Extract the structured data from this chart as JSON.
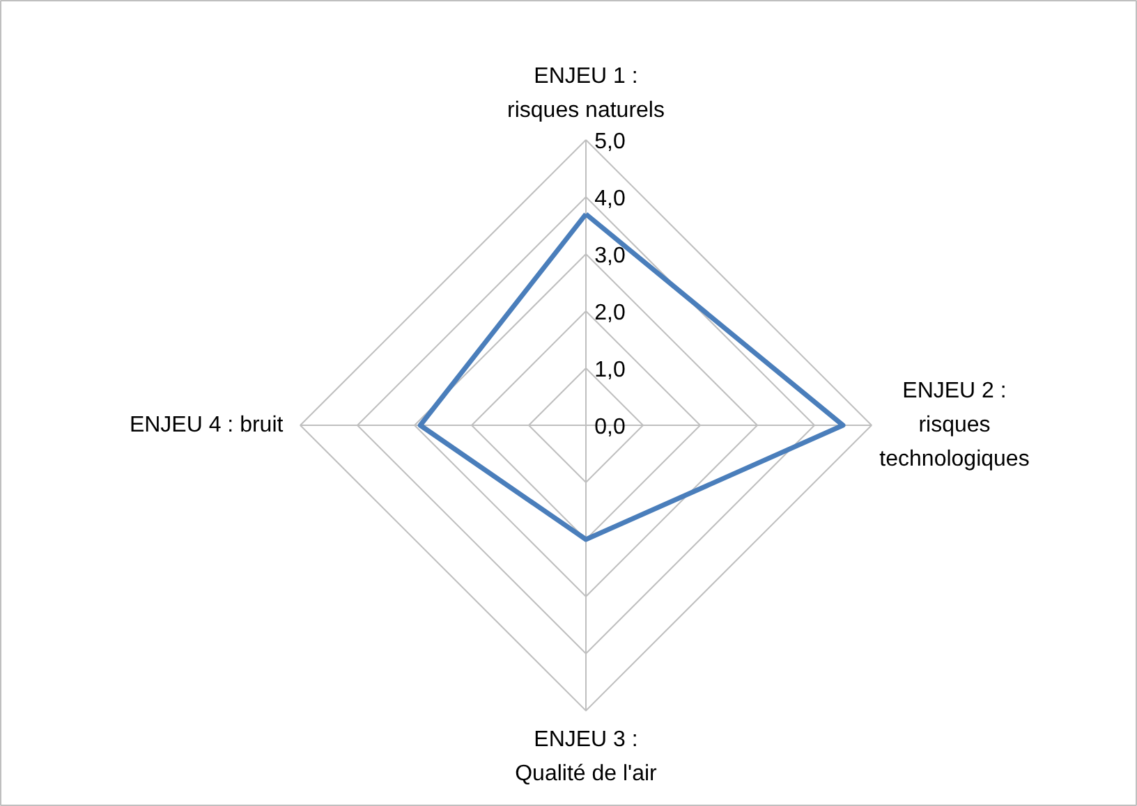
{
  "chart_data": {
    "type": "radar",
    "categories": [
      "ENJEU 1 :\nrisques naturels",
      "ENJEU 2 :\nrisques\ntechnologiques",
      "ENJEU 3 :\nQualité de l'air",
      "ENJEU 4 : bruit"
    ],
    "series": [
      {
        "color": "#4a7ebb",
        "values": [
          3.7,
          4.5,
          2.0,
          2.9
        ]
      }
    ],
    "ylim": [
      0,
      5
    ],
    "yticks": [
      {
        "value": 0,
        "label": "0,0"
      },
      {
        "value": 1,
        "label": "1,0"
      },
      {
        "value": 2,
        "label": "2,0"
      },
      {
        "value": 3,
        "label": "3,0"
      },
      {
        "value": 4,
        "label": "4,0"
      },
      {
        "value": 5,
        "label": "5,0"
      }
    ],
    "grid": true
  }
}
